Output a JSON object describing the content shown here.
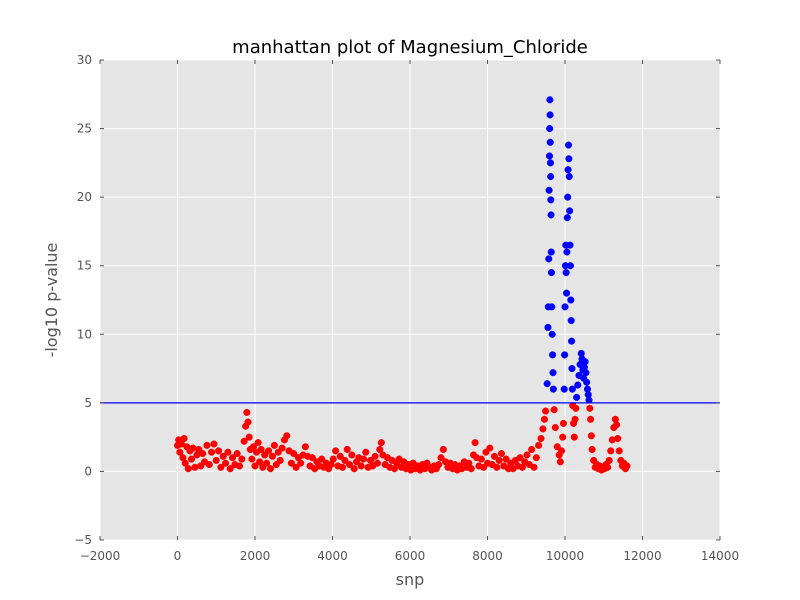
{
  "chart_data": {
    "type": "scatter",
    "title": "manhattan plot of Magnesium_Chloride",
    "xlabel": "snp",
    "ylabel": "-log10 p-value",
    "xlim": [
      -2000,
      14000
    ],
    "ylim": [
      -5,
      30
    ],
    "x_ticks": [
      "−2000",
      "0",
      "2000",
      "4000",
      "6000",
      "8000",
      "10000",
      "12000",
      "14000"
    ],
    "y_ticks": [
      "−5",
      "0",
      "5",
      "10",
      "15",
      "20",
      "25",
      "30"
    ],
    "x_tick_values": [
      -2000,
      0,
      2000,
      4000,
      6000,
      8000,
      10000,
      12000,
      14000
    ],
    "y_tick_values": [
      -5,
      0,
      5,
      10,
      15,
      20,
      25,
      30
    ],
    "grid": true,
    "background": "#e5e5e5",
    "threshold": {
      "y": 5,
      "color": "#0000ff"
    },
    "colors": {
      "below_threshold": "#ff0000",
      "above_threshold": "#0000ff"
    },
    "series": [
      {
        "values": [
          [
            0,
            1.9
          ],
          [
            30,
            2.3
          ],
          [
            60,
            1.4
          ],
          [
            100,
            2.0
          ],
          [
            140,
            1.0
          ],
          [
            170,
            2.4
          ],
          [
            200,
            0.6
          ],
          [
            240,
            1.8
          ],
          [
            280,
            0.2
          ],
          [
            320,
            1.5
          ],
          [
            360,
            0.9
          ],
          [
            400,
            1.7
          ],
          [
            450,
            0.3
          ],
          [
            500,
            1.2
          ],
          [
            550,
            1.6
          ],
          [
            600,
            0.4
          ],
          [
            650,
            1.3
          ],
          [
            700,
            0.7
          ],
          [
            760,
            1.9
          ],
          [
            820,
            0.5
          ],
          [
            880,
            1.4
          ],
          [
            940,
            2.0
          ],
          [
            1000,
            0.8
          ],
          [
            1060,
            1.5
          ],
          [
            1120,
            0.3
          ],
          [
            1180,
            1.1
          ],
          [
            1240,
            0.6
          ],
          [
            1300,
            1.4
          ],
          [
            1360,
            0.2
          ],
          [
            1420,
            1.0
          ],
          [
            1480,
            0.5
          ],
          [
            1540,
            1.3
          ],
          [
            1600,
            0.4
          ],
          [
            1660,
            0.9
          ],
          [
            1720,
            2.2
          ],
          [
            1760,
            3.3
          ],
          [
            1790,
            4.3
          ],
          [
            1820,
            3.6
          ],
          [
            1850,
            2.5
          ],
          [
            1880,
            1.6
          ],
          [
            1920,
            0.9
          ],
          [
            1960,
            1.8
          ],
          [
            2000,
            0.4
          ],
          [
            2040,
            1.4
          ],
          [
            2080,
            2.1
          ],
          [
            2120,
            0.7
          ],
          [
            2160,
            1.6
          ],
          [
            2200,
            0.3
          ],
          [
            2250,
            1.2
          ],
          [
            2300,
            0.6
          ],
          [
            2350,
            1.5
          ],
          [
            2400,
            0.2
          ],
          [
            2450,
            1.1
          ],
          [
            2500,
            1.9
          ],
          [
            2550,
            0.5
          ],
          [
            2600,
            1.4
          ],
          [
            2650,
            0.8
          ],
          [
            2700,
            1.7
          ],
          [
            2760,
            2.3
          ],
          [
            2820,
            2.6
          ],
          [
            2880,
            1.5
          ],
          [
            2940,
            0.6
          ],
          [
            3000,
            1.3
          ],
          [
            3060,
            0.3
          ],
          [
            3120,
            1.0
          ],
          [
            3180,
            0.6
          ],
          [
            3240,
            1.2
          ],
          [
            3300,
            1.8
          ],
          [
            3360,
            1.1
          ],
          [
            3420,
            0.4
          ],
          [
            3480,
            1.0
          ],
          [
            3540,
            0.2
          ],
          [
            3600,
            0.7
          ],
          [
            3660,
            0.4
          ],
          [
            3720,
            0.9
          ],
          [
            3780,
            0.3
          ],
          [
            3840,
            0.6
          ],
          [
            3900,
            0.2
          ],
          [
            3960,
            0.5
          ],
          [
            4020,
            0.9
          ],
          [
            4080,
            1.5
          ],
          [
            4140,
            0.4
          ],
          [
            4200,
            1.1
          ],
          [
            4260,
            0.3
          ],
          [
            4320,
            0.8
          ],
          [
            4380,
            1.6
          ],
          [
            4440,
            0.5
          ],
          [
            4500,
            1.2
          ],
          [
            4560,
            0.2
          ],
          [
            4620,
            0.7
          ],
          [
            4680,
            1.0
          ],
          [
            4740,
            0.4
          ],
          [
            4800,
            0.9
          ],
          [
            4860,
            1.4
          ],
          [
            4920,
            0.3
          ],
          [
            4980,
            0.8
          ],
          [
            5040,
            0.4
          ],
          [
            5100,
            1.1
          ],
          [
            5160,
            0.6
          ],
          [
            5220,
            1.6
          ],
          [
            5260,
            2.1
          ],
          [
            5300,
            1.2
          ],
          [
            5360,
            0.5
          ],
          [
            5420,
            1.0
          ],
          [
            5480,
            0.3
          ],
          [
            5540,
            0.8
          ],
          [
            5600,
            0.2
          ],
          [
            5660,
            0.6
          ],
          [
            5720,
            0.9
          ],
          [
            5780,
            0.3
          ],
          [
            5840,
            0.7
          ],
          [
            5900,
            0.2
          ],
          [
            5960,
            0.5
          ],
          [
            6020,
            0.1
          ],
          [
            6080,
            0.6
          ],
          [
            6140,
            0.2
          ],
          [
            6200,
            0.4
          ],
          [
            6260,
            0.1
          ],
          [
            6320,
            0.5
          ],
          [
            6380,
            0.2
          ],
          [
            6440,
            0.6
          ],
          [
            6500,
            0.3
          ],
          [
            6560,
            0.1
          ],
          [
            6620,
            0.4
          ],
          [
            6680,
            0.2
          ],
          [
            6740,
            0.5
          ],
          [
            6800,
            1.0
          ],
          [
            6860,
            1.6
          ],
          [
            6920,
            0.7
          ],
          [
            6980,
            0.3
          ],
          [
            7040,
            0.6
          ],
          [
            7100,
            0.2
          ],
          [
            7160,
            0.5
          ],
          [
            7220,
            0.1
          ],
          [
            7280,
            0.4
          ],
          [
            7340,
            0.2
          ],
          [
            7400,
            0.7
          ],
          [
            7460,
            0.3
          ],
          [
            7520,
            0.6
          ],
          [
            7580,
            0.2
          ],
          [
            7640,
            1.2
          ],
          [
            7680,
            2.1
          ],
          [
            7720,
            1.0
          ],
          [
            7780,
            0.4
          ],
          [
            7840,
            0.9
          ],
          [
            7900,
            0.3
          ],
          [
            7960,
            1.4
          ],
          [
            8000,
            0.6
          ],
          [
            8060,
            1.7
          ],
          [
            8120,
            0.5
          ],
          [
            8180,
            1.1
          ],
          [
            8240,
            0.3
          ],
          [
            8300,
            0.8
          ],
          [
            8360,
            1.3
          ],
          [
            8420,
            0.4
          ],
          [
            8480,
            0.9
          ],
          [
            8540,
            0.2
          ],
          [
            8600,
            0.6
          ],
          [
            8660,
            0.2
          ],
          [
            8720,
            0.8
          ],
          [
            8780,
            0.4
          ],
          [
            8840,
            1.0
          ],
          [
            8900,
            0.3
          ],
          [
            8960,
            0.7
          ],
          [
            9020,
            1.2
          ],
          [
            9080,
            0.5
          ],
          [
            9140,
            1.6
          ],
          [
            9200,
            0.3
          ],
          [
            9260,
            1.0
          ],
          [
            9320,
            1.9
          ],
          [
            9380,
            2.4
          ],
          [
            9430,
            3.1
          ],
          [
            9470,
            3.8
          ],
          [
            9500,
            4.4
          ],
          [
            9540,
            6.4
          ],
          [
            9560,
            10.5
          ],
          [
            9570,
            12.0
          ],
          [
            9580,
            15.5
          ],
          [
            9590,
            20.5
          ],
          [
            9600,
            23.0
          ],
          [
            9605,
            25.0
          ],
          [
            9610,
            27.1
          ],
          [
            9615,
            26.0
          ],
          [
            9620,
            24.0
          ],
          [
            9625,
            22.5
          ],
          [
            9630,
            21.5
          ],
          [
            9635,
            19.8
          ],
          [
            9640,
            18.7
          ],
          [
            9645,
            16.0
          ],
          [
            9650,
            14.5
          ],
          [
            9660,
            12.0
          ],
          [
            9670,
            10.0
          ],
          [
            9680,
            8.5
          ],
          [
            9690,
            7.2
          ],
          [
            9700,
            6.0
          ],
          [
            9720,
            4.5
          ],
          [
            9750,
            3.2
          ],
          [
            9800,
            1.8
          ],
          [
            9850,
            1.2
          ],
          [
            9880,
            0.7
          ],
          [
            9910,
            1.5
          ],
          [
            9940,
            2.5
          ],
          [
            9960,
            3.5
          ],
          [
            9980,
            6.0
          ],
          [
            9990,
            8.5
          ],
          [
            10000,
            12.0
          ],
          [
            10010,
            15.0
          ],
          [
            10020,
            16.5
          ],
          [
            10030,
            14.5
          ],
          [
            10040,
            13.0
          ],
          [
            10050,
            16.0
          ],
          [
            10060,
            18.5
          ],
          [
            10070,
            20.0
          ],
          [
            10080,
            22.0
          ],
          [
            10090,
            23.8
          ],
          [
            10100,
            22.8
          ],
          [
            10110,
            21.5
          ],
          [
            10120,
            19.0
          ],
          [
            10130,
            16.5
          ],
          [
            10140,
            15.0
          ],
          [
            10150,
            12.5
          ],
          [
            10160,
            11.0
          ],
          [
            10170,
            9.5
          ],
          [
            10180,
            7.5
          ],
          [
            10190,
            6.0
          ],
          [
            10200,
            4.8
          ],
          [
            10220,
            3.5
          ],
          [
            10240,
            2.5
          ],
          [
            10260,
            3.8
          ],
          [
            10280,
            4.6
          ],
          [
            10300,
            5.4
          ],
          [
            10330,
            6.3
          ],
          [
            10360,
            7.0
          ],
          [
            10390,
            7.8
          ],
          [
            10420,
            8.6
          ],
          [
            10440,
            8.2
          ],
          [
            10460,
            7.4
          ],
          [
            10480,
            6.8
          ],
          [
            10500,
            7.6
          ],
          [
            10520,
            8.0
          ],
          [
            10540,
            7.2
          ],
          [
            10560,
            6.5
          ],
          [
            10580,
            6.0
          ],
          [
            10600,
            5.6
          ],
          [
            10620,
            5.2
          ],
          [
            10640,
            4.6
          ],
          [
            10660,
            3.8
          ],
          [
            10680,
            2.6
          ],
          [
            10700,
            1.6
          ],
          [
            10740,
            0.8
          ],
          [
            10780,
            0.3
          ],
          [
            10820,
            0.5
          ],
          [
            10860,
            0.2
          ],
          [
            10900,
            0.4
          ],
          [
            10940,
            0.1
          ],
          [
            10980,
            0.3
          ],
          [
            11020,
            0.2
          ],
          [
            11060,
            0.5
          ],
          [
            11100,
            0.3
          ],
          [
            11140,
            0.8
          ],
          [
            11180,
            1.5
          ],
          [
            11220,
            2.3
          ],
          [
            11260,
            3.2
          ],
          [
            11300,
            3.8
          ],
          [
            11330,
            3.4
          ],
          [
            11360,
            2.4
          ],
          [
            11400,
            1.5
          ],
          [
            11440,
            0.8
          ],
          [
            11480,
            0.4
          ],
          [
            11520,
            0.6
          ],
          [
            11560,
            0.2
          ],
          [
            11600,
            0.4
          ]
        ]
      }
    ]
  }
}
